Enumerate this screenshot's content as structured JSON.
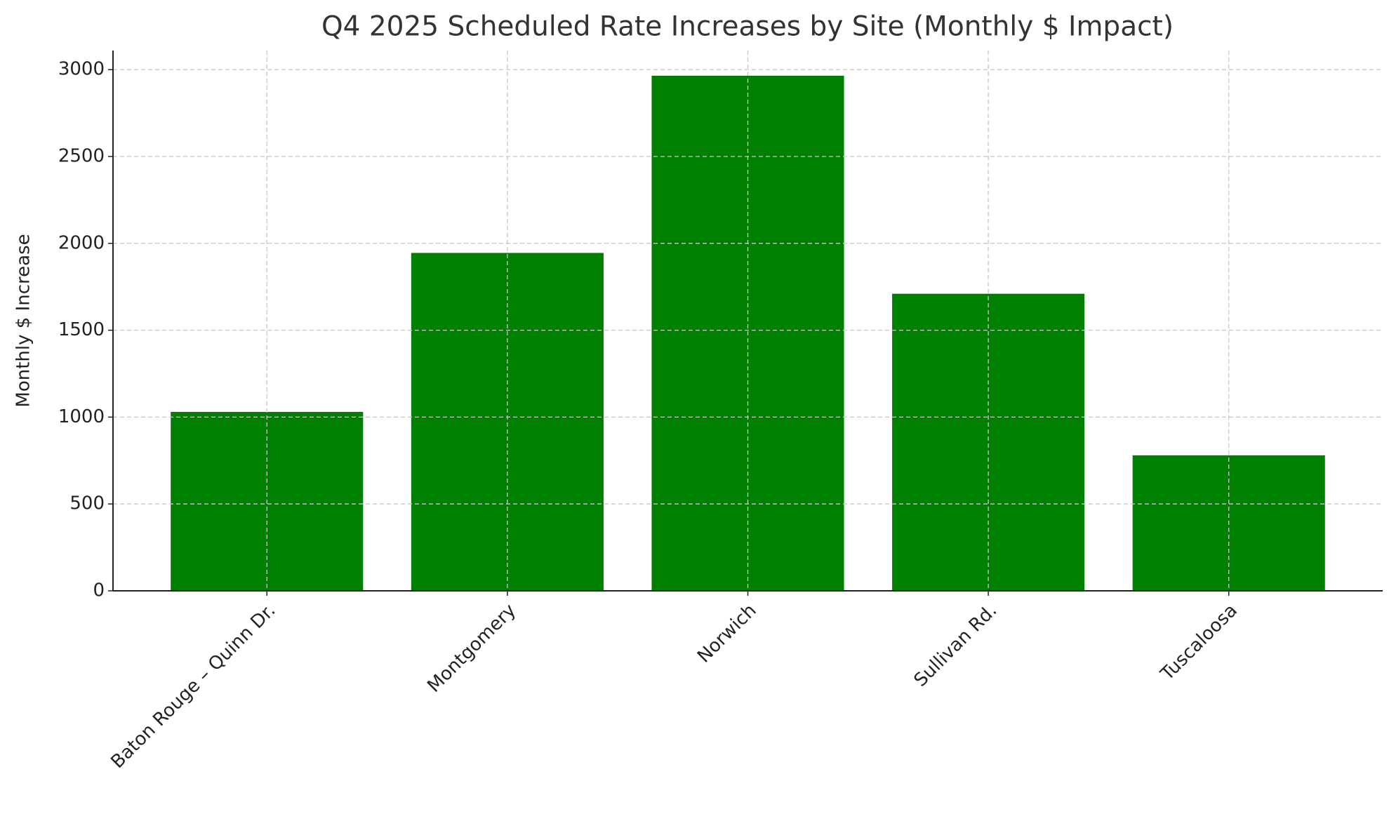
{
  "chart_data": {
    "type": "bar",
    "title": "Q4 2025 Scheduled Rate Increases by Site (Monthly $ Impact)",
    "y_label": "Monthly $ Increase",
    "categories": [
      "Baton Rouge – Quinn Dr.",
      "Montgomery",
      "Norwich",
      "Sullivan Rd.",
      "Tuscaloosa"
    ],
    "values": [
      1030,
      1945,
      2965,
      1710,
      780
    ],
    "color": "#008000",
    "ylim": [
      0,
      3110
    ],
    "yticks": [
      0,
      500,
      1000,
      1500,
      2000,
      2500,
      3000
    ],
    "grid": true
  }
}
